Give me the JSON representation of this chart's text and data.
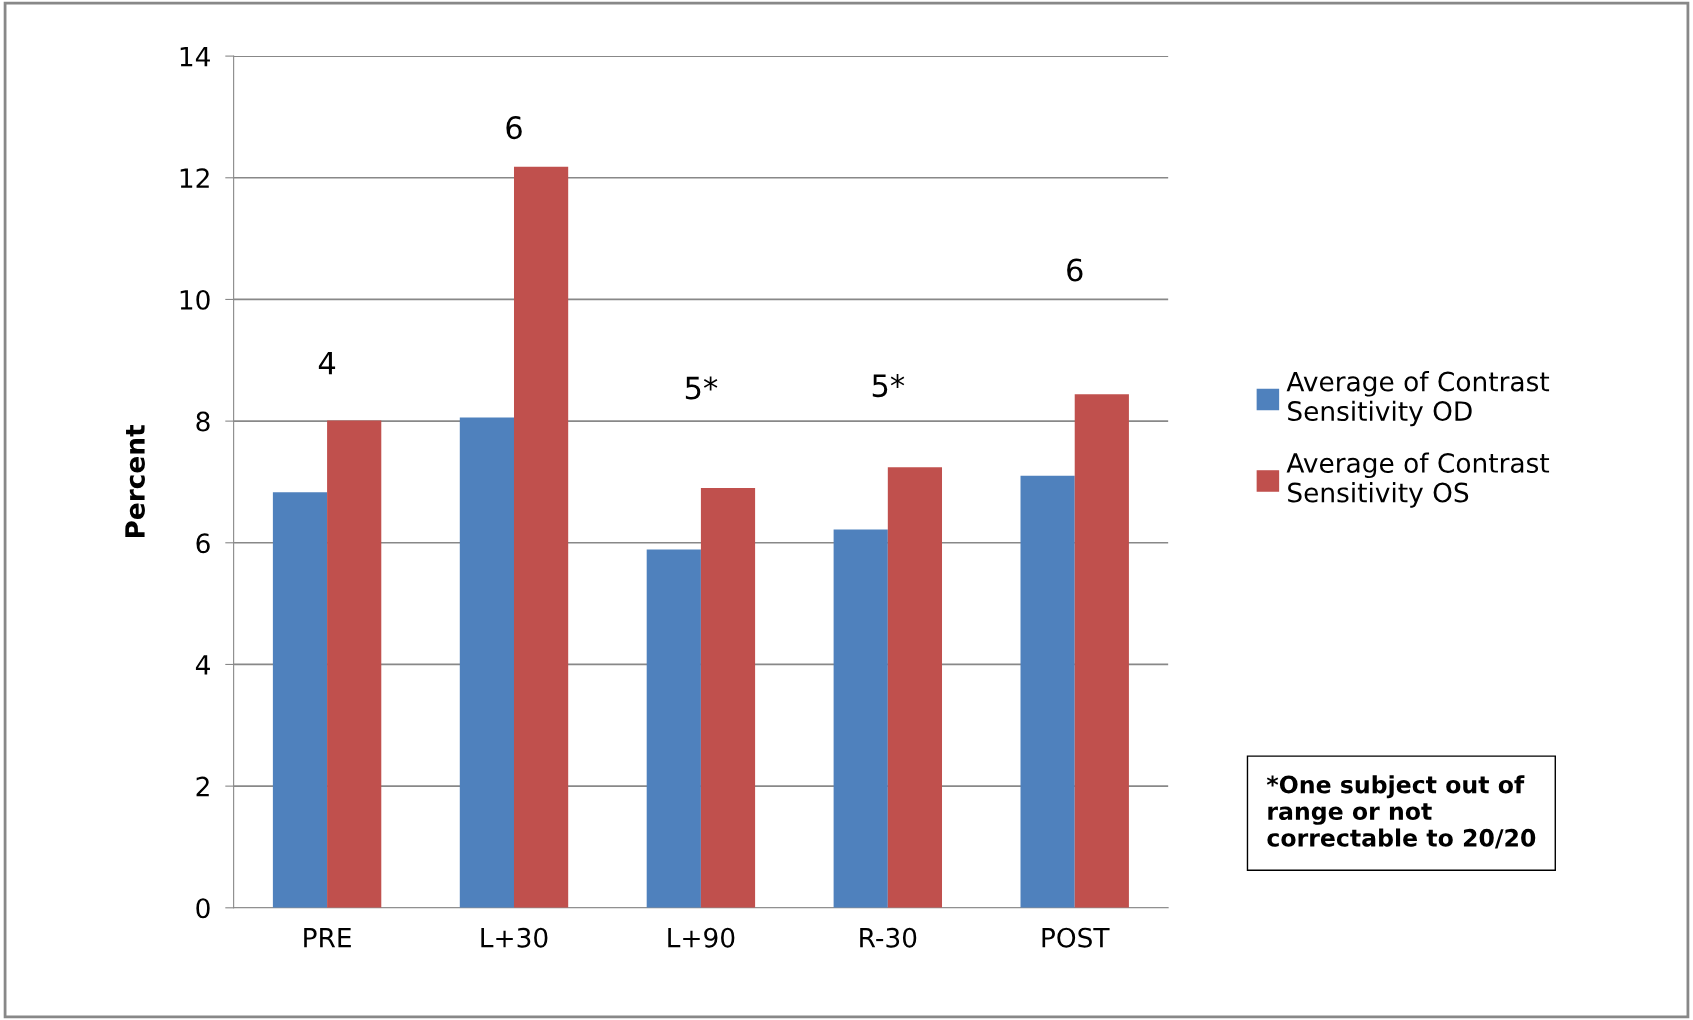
{
  "chart_data": {
    "type": "bar",
    "ylabel": "Percent",
    "categories": [
      "PRE",
      "L+30",
      "L+90",
      "R-30",
      "POST"
    ],
    "series": [
      {
        "name": "Average of Contrast Sensitivity OD",
        "color": "#4f81bd",
        "values": [
          6.83,
          8.06,
          5.89,
          6.22,
          7.1
        ]
      },
      {
        "name": "Average of Contrast Sensitivity OS",
        "color": "#c0504d",
        "values": [
          8.01,
          12.18,
          6.9,
          7.24,
          8.44
        ]
      }
    ],
    "ylim": [
      0,
      14
    ],
    "yticks": [
      0,
      2,
      4,
      6,
      8,
      10,
      12,
      14
    ],
    "grid": "y",
    "legend": "right",
    "annotations": [
      "4",
      "6",
      "5*",
      "5*",
      "6",
      "*One subject out of range or not correctable to 20/20"
    ]
  }
}
